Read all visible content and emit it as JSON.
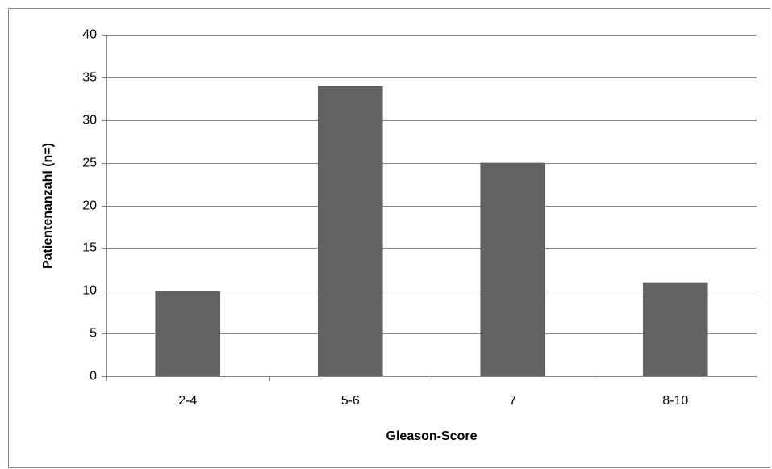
{
  "chart_data": {
    "type": "bar",
    "x_label": "Gleason-Score",
    "y_label": "Patientenanzahl (n=)",
    "categories": [
      "2-4",
      "5-6",
      "7",
      "8-10"
    ],
    "values": [
      10,
      34,
      25,
      11
    ],
    "color": "#626262",
    "ylim": [
      0,
      40
    ],
    "yticks": [
      0,
      5,
      10,
      15,
      20,
      25,
      30,
      35,
      40
    ],
    "grid": true
  }
}
